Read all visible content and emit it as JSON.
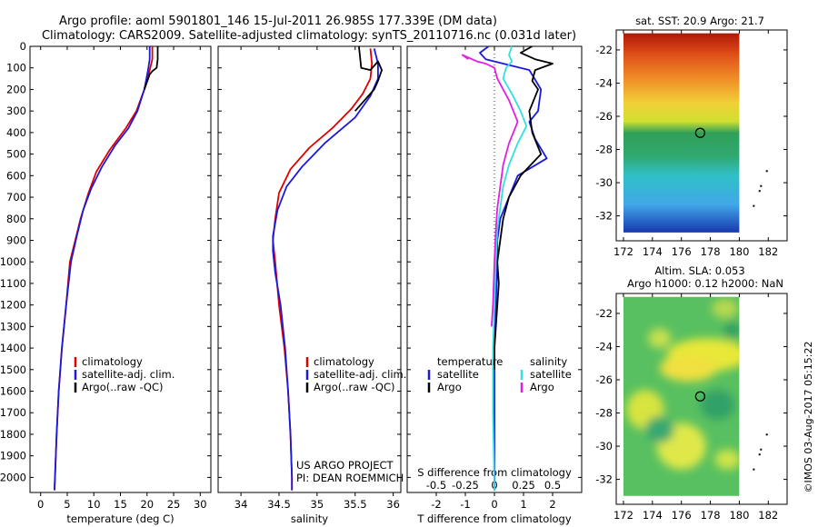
{
  "titles": {
    "line1": "Argo profile: aoml 5901801_146 15-Jul-2011 26.985S 177.339E (DM data)",
    "line2": "Climatology: CARS2009. Satellite-adjusted climatology: synTS_20110716.nc (0.031d later)"
  },
  "colors": {
    "climatology": "#e00000",
    "satellite": "#1a1adc",
    "argo": "#000000",
    "sal_satellite": "#33e0e0",
    "sal_argo": "#e020e0"
  },
  "depth_ticks": [
    0,
    100,
    200,
    300,
    400,
    500,
    600,
    700,
    800,
    900,
    1000,
    1100,
    1200,
    1300,
    1400,
    1500,
    1600,
    1700,
    1800,
    1900,
    2000
  ],
  "chart_data": [
    {
      "id": "temperature",
      "type": "line",
      "xlabel": "temperature (deg C)",
      "xlim": [
        -2,
        32
      ],
      "ylim": [
        2070,
        0
      ],
      "xticks": [
        "0",
        "5",
        "10",
        "15",
        "20",
        "25",
        "30"
      ],
      "xtick_values": [
        0,
        5,
        10,
        15,
        20,
        25,
        30
      ],
      "legend": [
        "climatology",
        "satellite-adj. clim.",
        "Argo(..raw -QC)"
      ],
      "series": [
        {
          "name": "climatology",
          "color": "#e00000",
          "points": [
            [
              21,
              0
            ],
            [
              21,
              60
            ],
            [
              20.5,
              110
            ],
            [
              19.5,
              200
            ],
            [
              18,
              300
            ],
            [
              16,
              380
            ],
            [
              13,
              480
            ],
            [
              10.5,
              580
            ],
            [
              9,
              680
            ],
            [
              7.5,
              800
            ],
            [
              6.5,
              900
            ],
            [
              5.5,
              1000
            ],
            [
              4.8,
              1200
            ],
            [
              4,
              1400
            ],
            [
              3.4,
              1600
            ],
            [
              3,
              1800
            ],
            [
              2.7,
              2000
            ],
            [
              2.6,
              2060
            ]
          ]
        },
        {
          "name": "satellite-adj. clim.",
          "color": "#1a1adc",
          "points": [
            [
              20.5,
              0
            ],
            [
              20.5,
              60
            ],
            [
              20.2,
              110
            ],
            [
              19.5,
              200
            ],
            [
              18.2,
              300
            ],
            [
              16.5,
              380
            ],
            [
              14,
              460
            ],
            [
              11.5,
              560
            ],
            [
              9.5,
              660
            ],
            [
              8,
              760
            ],
            [
              6.8,
              880
            ],
            [
              5.7,
              1000
            ],
            [
              4.8,
              1200
            ],
            [
              4,
              1400
            ],
            [
              3.4,
              1600
            ],
            [
              3,
              1800
            ],
            [
              2.7,
              2000
            ],
            [
              2.6,
              2060
            ]
          ]
        },
        {
          "name": "Argo(..raw -QC)",
          "color": "#000000",
          "points": [
            [
              22,
              0
            ],
            [
              22,
              60
            ],
            [
              21.8,
              100
            ],
            [
              21,
              115
            ],
            [
              20.5,
              130
            ],
            [
              19.5,
              200
            ]
          ]
        }
      ]
    },
    {
      "id": "salinity",
      "type": "line",
      "xlabel": "salinity",
      "xlim": [
        33.7,
        36.1
      ],
      "ylim": [
        2070,
        0
      ],
      "xticks": [
        "34",
        "34.5",
        "35",
        "35.5",
        "36"
      ],
      "xtick_values": [
        34,
        34.5,
        35,
        35.5,
        36
      ],
      "legend": [
        "climatology",
        "satellite-adj. clim.",
        "Argo(..raw -QC)"
      ],
      "series": [
        {
          "name": "climatology",
          "color": "#e00000",
          "points": [
            [
              35.7,
              10
            ],
            [
              35.72,
              80
            ],
            [
              35.7,
              150
            ],
            [
              35.6,
              220
            ],
            [
              35.45,
              290
            ],
            [
              35.2,
              380
            ],
            [
              34.9,
              470
            ],
            [
              34.65,
              570
            ],
            [
              34.5,
              680
            ],
            [
              34.45,
              800
            ],
            [
              34.42,
              900
            ],
            [
              34.45,
              1000
            ],
            [
              34.5,
              1200
            ],
            [
              34.57,
              1400
            ],
            [
              34.62,
              1600
            ],
            [
              34.65,
              1800
            ],
            [
              34.67,
              2000
            ],
            [
              34.67,
              2060
            ]
          ]
        },
        {
          "name": "satellite-adj. clim.",
          "color": "#1a1adc",
          "points": [
            [
              35.75,
              10
            ],
            [
              35.8,
              80
            ],
            [
              35.8,
              150
            ],
            [
              35.7,
              230
            ],
            [
              35.5,
              330
            ],
            [
              35.1,
              450
            ],
            [
              34.8,
              560
            ],
            [
              34.6,
              650
            ],
            [
              34.48,
              760
            ],
            [
              34.42,
              880
            ],
            [
              34.42,
              950
            ],
            [
              34.45,
              1050
            ],
            [
              34.52,
              1200
            ],
            [
              34.58,
              1400
            ],
            [
              34.62,
              1600
            ],
            [
              34.65,
              1800
            ],
            [
              34.67,
              2000
            ],
            [
              34.67,
              2060
            ]
          ]
        },
        {
          "name": "Argo(..raw -QC)",
          "color": "#000000",
          "points": [
            [
              35.55,
              0
            ],
            [
              35.58,
              100
            ],
            [
              35.7,
              110
            ],
            [
              35.8,
              70
            ],
            [
              35.85,
              110
            ],
            [
              35.8,
              160
            ],
            [
              35.75,
              200
            ],
            [
              35.6,
              260
            ],
            [
              35.5,
              300
            ]
          ]
        }
      ]
    },
    {
      "id": "difference",
      "type": "line",
      "xlabel": "T difference from climatology",
      "xlabel2": "S difference from climatology",
      "xlim": [
        -3,
        3
      ],
      "ylim": [
        2070,
        0
      ],
      "xticks": [
        "-2",
        "-1",
        "0",
        "1",
        "2"
      ],
      "xtick_values": [
        -2,
        -1,
        0,
        1,
        2
      ],
      "xticks2": [
        "-0.5",
        "-0.25",
        "0",
        "0.25",
        "0.5"
      ],
      "xtick2_values": [
        -2,
        -1,
        0,
        1,
        2
      ],
      "legend": {
        "temperature_label": "temperature",
        "salinity_label": "salinity",
        "items": [
          "satellite",
          "Argo",
          "satellite",
          "Argo"
        ]
      },
      "series": [
        {
          "name": "temperature satellite",
          "color": "#1a1adc",
          "points": [
            [
              -0.2,
              0
            ],
            [
              -0.5,
              30
            ],
            [
              -0.3,
              60
            ],
            [
              0.3,
              80
            ],
            [
              1.2,
              110
            ],
            [
              1.6,
              200
            ],
            [
              1.5,
              300
            ],
            [
              1.2,
              350
            ],
            [
              1.4,
              430
            ],
            [
              1.8,
              520
            ],
            [
              0.8,
              600
            ],
            [
              0.5,
              700
            ],
            [
              0.2,
              800
            ],
            [
              0.1,
              900
            ],
            [
              0.1,
              1000
            ],
            [
              0.05,
              1200
            ],
            [
              0,
              1400
            ],
            [
              0,
              2060
            ]
          ]
        },
        {
          "name": "temperature Argo",
          "color": "#000000",
          "points": [
            [
              1.3,
              0
            ],
            [
              0.9,
              30
            ],
            [
              1.4,
              60
            ],
            [
              2,
              80
            ],
            [
              1.4,
              110
            ],
            [
              1.3,
              160
            ],
            [
              1.5,
              200
            ],
            [
              1.2,
              300
            ],
            [
              1.3,
              400
            ],
            [
              1.6,
              500
            ],
            [
              0.9,
              600
            ],
            [
              0.5,
              700
            ],
            [
              0.3,
              800
            ],
            [
              0.2,
              900
            ],
            [
              0.1,
              1000
            ],
            [
              0.15,
              1100
            ],
            [
              0.1,
              1200
            ],
            [
              0.05,
              1300
            ],
            [
              0,
              1400
            ],
            [
              0,
              1500
            ]
          ]
        },
        {
          "name": "salinity satellite",
          "color": "#33e0e0",
          "points": [
            [
              0.6,
              0
            ],
            [
              0.5,
              40
            ],
            [
              0.6,
              70
            ],
            [
              0.4,
              100
            ],
            [
              0.3,
              150
            ],
            [
              0.6,
              220
            ],
            [
              0.9,
              300
            ],
            [
              1.1,
              370
            ],
            [
              0.8,
              450
            ],
            [
              0.5,
              550
            ],
            [
              0.3,
              650
            ],
            [
              0.2,
              750
            ],
            [
              0.1,
              850
            ],
            [
              0.05,
              1000
            ],
            [
              0,
              1200
            ],
            [
              -0.05,
              1400
            ],
            [
              -0.05,
              1700
            ],
            [
              0,
              2060
            ]
          ]
        },
        {
          "name": "salinity Argo",
          "color": "#e020e0",
          "points": [
            [
              -0.9,
              60
            ],
            [
              -1.1,
              40
            ],
            [
              -0.6,
              70
            ],
            [
              -0.3,
              80
            ],
            [
              0,
              100
            ],
            [
              0.1,
              150
            ],
            [
              0.5,
              250
            ],
            [
              0.8,
              350
            ],
            [
              0.5,
              450
            ],
            [
              0.3,
              550
            ],
            [
              0.2,
              650
            ],
            [
              0.1,
              750
            ],
            [
              0.05,
              850
            ],
            [
              0,
              1000
            ],
            [
              -0.05,
              1200
            ],
            [
              -0.1,
              1300
            ]
          ]
        }
      ],
      "annotation": [
        "US ARGO PROJECT",
        "PI: DEAN ROEMMICH"
      ]
    },
    {
      "id": "sst_map",
      "type": "heatmap",
      "title": "sat. SST: 20.9 Argo: 21.7",
      "xlim": [
        171.5,
        183.3
      ],
      "ylim": [
        -33.5,
        -20.8
      ],
      "xticks": [
        "172",
        "174",
        "176",
        "178",
        "180",
        "182"
      ],
      "xtick_values": [
        172,
        174,
        176,
        178,
        180,
        182
      ],
      "yticks": [
        "-22",
        "-24",
        "-26",
        "-28",
        "-30",
        "-32"
      ],
      "ytick_values": [
        -22,
        -24,
        -26,
        -28,
        -30,
        -32
      ],
      "data_lon_range": [
        172,
        180
      ],
      "data_lat_range": [
        -33,
        -21
      ],
      "float_position": [
        177.3,
        -27.0
      ],
      "islands": [
        [
          181.9,
          -29.3
        ],
        [
          181.5,
          -30.2
        ],
        [
          181.4,
          -30.5
        ],
        [
          181.0,
          -31.4
        ]
      ],
      "gradient": [
        {
          "lat": -21,
          "color": "#b01808"
        },
        {
          "lat": -22.3,
          "color": "#e05018"
        },
        {
          "lat": -23.8,
          "color": "#f09028"
        },
        {
          "lat": -25.2,
          "color": "#f0d038"
        },
        {
          "lat": -26.3,
          "color": "#d0e030"
        },
        {
          "lat": -27.0,
          "color": "#30a058"
        },
        {
          "lat": -28.4,
          "color": "#30a870"
        },
        {
          "lat": -29.6,
          "color": "#30c0c8"
        },
        {
          "lat": -31.3,
          "color": "#40a8e8"
        },
        {
          "lat": -33,
          "color": "#1838b0"
        }
      ]
    },
    {
      "id": "sla_map",
      "type": "heatmap",
      "title": "Altim. SLA: 0.053",
      "title2": "Argo h1000: 0.12 h2000: NaN",
      "xlim": [
        171.5,
        183.3
      ],
      "ylim": [
        -33.5,
        -20.8
      ],
      "xticks": [
        "172",
        "174",
        "176",
        "178",
        "180",
        "182"
      ],
      "xtick_values": [
        172,
        174,
        176,
        178,
        180,
        182
      ],
      "yticks": [
        "-22",
        "-24",
        "-26",
        "-28",
        "-30",
        "-32"
      ],
      "ytick_values": [
        -22,
        -24,
        -26,
        -28,
        -30,
        -32
      ],
      "data_lon_range": [
        172,
        180
      ],
      "data_lat_range": [
        -33,
        -21
      ],
      "float_position": [
        177.3,
        -27.0
      ],
      "islands": [
        [
          181.9,
          -29.3
        ],
        [
          181.5,
          -30.2
        ],
        [
          181.4,
          -30.5
        ],
        [
          181.0,
          -31.4
        ]
      ],
      "base_color": "#58c060",
      "blobs": [
        {
          "lon": 177.8,
          "lat": -24.5,
          "rx": 2.8,
          "ry": 1.0,
          "color": "#e8e838"
        },
        {
          "lon": 176.5,
          "lat": -25.3,
          "rx": 2.0,
          "ry": 0.8,
          "color": "#f0e040"
        },
        {
          "lon": 173.5,
          "lat": -27.8,
          "rx": 1.3,
          "ry": 1.2,
          "color": "#d8e440"
        },
        {
          "lon": 174.5,
          "lat": -23.5,
          "rx": 0.8,
          "ry": 0.6,
          "color": "#c8e050"
        },
        {
          "lon": 176.0,
          "lat": -30.0,
          "rx": 1.7,
          "ry": 1.4,
          "color": "#e0e848"
        },
        {
          "lon": 179.2,
          "lat": -30.8,
          "rx": 0.9,
          "ry": 0.6,
          "color": "#d0e448"
        },
        {
          "lon": 179.0,
          "lat": -21.7,
          "rx": 0.9,
          "ry": 0.6,
          "color": "#b8d850"
        },
        {
          "lon": 178.5,
          "lat": -27.5,
          "rx": 1.2,
          "ry": 0.9,
          "color": "#30a068"
        },
        {
          "lon": 174.5,
          "lat": -29.0,
          "rx": 1.0,
          "ry": 0.8,
          "color": "#38a870"
        },
        {
          "lon": 179.5,
          "lat": -23.0,
          "rx": 0.6,
          "ry": 0.5,
          "color": "#30a060"
        }
      ]
    }
  ],
  "footer": {
    "watermark": "©IMOS 03-Aug-2017 05:15:22"
  }
}
